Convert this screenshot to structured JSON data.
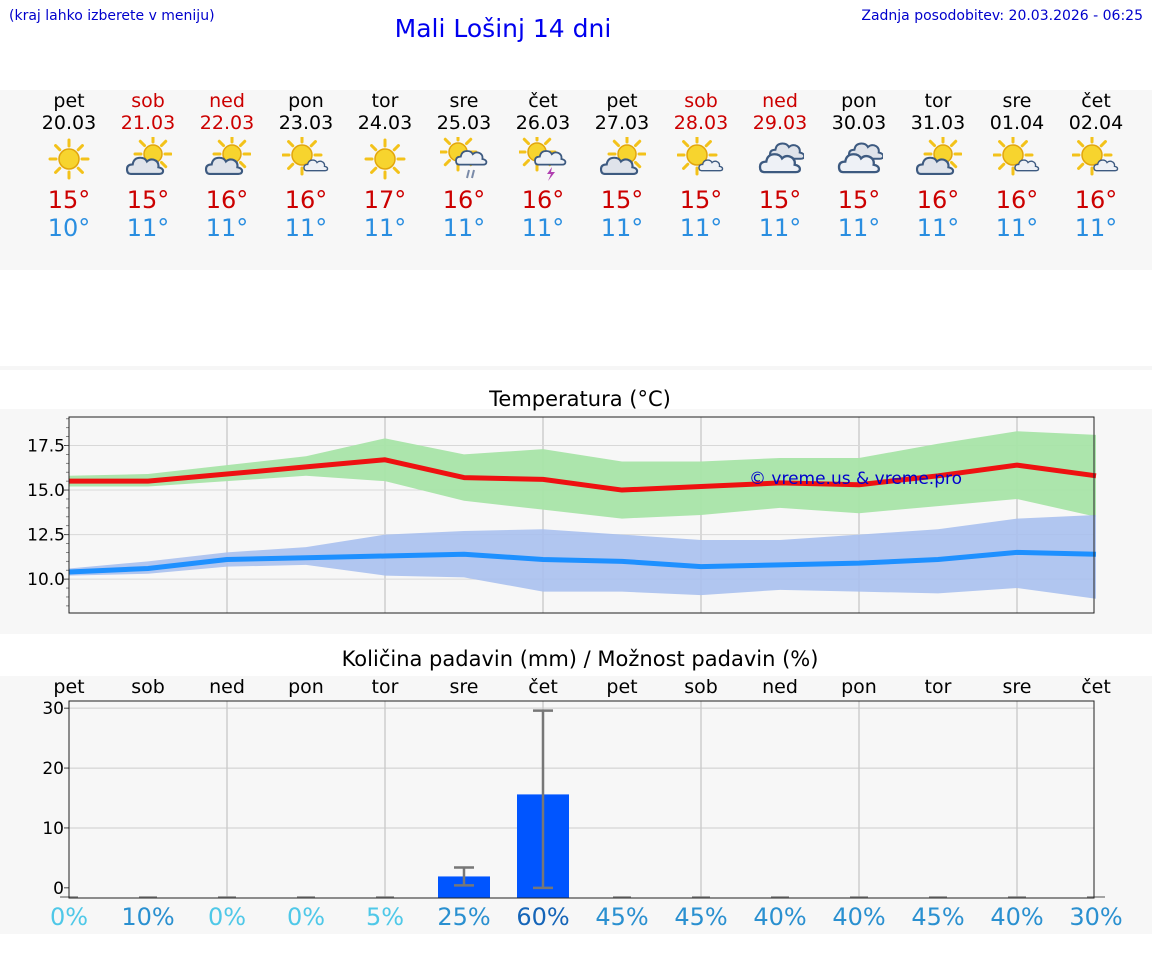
{
  "header": {
    "hint": "(kraj lahko izberete v meniju)",
    "title": "Mali Lošinj 14 dni",
    "updated": "Zadnja posodobitev: 20.03.2026 - 06:25"
  },
  "days": [
    {
      "name": "pet",
      "date": "20.03",
      "weekend": false,
      "icon": "sun-icon",
      "tmax": "15°",
      "tmin": "10°"
    },
    {
      "name": "sob",
      "date": "21.03",
      "weekend": true,
      "icon": "sun-behind-cloud-icon",
      "tmax": "15°",
      "tmin": "11°"
    },
    {
      "name": "ned",
      "date": "22.03",
      "weekend": true,
      "icon": "sun-behind-cloud-icon",
      "tmax": "16°",
      "tmin": "11°"
    },
    {
      "name": "pon",
      "date": "23.03",
      "weekend": false,
      "icon": "sun-small-cloud-icon",
      "tmax": "16°",
      "tmin": "11°"
    },
    {
      "name": "tor",
      "date": "24.03",
      "weekend": false,
      "icon": "sun-icon",
      "tmax": "17°",
      "tmin": "11°"
    },
    {
      "name": "sre",
      "date": "25.03",
      "weekend": false,
      "icon": "sun-rain-icon",
      "tmax": "16°",
      "tmin": "11°"
    },
    {
      "name": "čet",
      "date": "26.03",
      "weekend": false,
      "icon": "sun-thunder-icon",
      "tmax": "16°",
      "tmin": "11°"
    },
    {
      "name": "pet",
      "date": "27.03",
      "weekend": false,
      "icon": "sun-behind-cloud-icon",
      "tmax": "15°",
      "tmin": "11°"
    },
    {
      "name": "sob",
      "date": "28.03",
      "weekend": true,
      "icon": "sun-small-cloud-icon",
      "tmax": "15°",
      "tmin": "11°"
    },
    {
      "name": "ned",
      "date": "29.03",
      "weekend": true,
      "icon": "cloud-icon",
      "tmax": "15°",
      "tmin": "11°"
    },
    {
      "name": "pon",
      "date": "30.03",
      "weekend": false,
      "icon": "cloud-icon",
      "tmax": "15°",
      "tmin": "11°"
    },
    {
      "name": "tor",
      "date": "31.03",
      "weekend": false,
      "icon": "sun-behind-cloud-icon",
      "tmax": "16°",
      "tmin": "11°"
    },
    {
      "name": "sre",
      "date": "01.04",
      "weekend": false,
      "icon": "sun-small-cloud-icon",
      "tmax": "16°",
      "tmin": "11°"
    },
    {
      "name": "čet",
      "date": "02.04",
      "weekend": false,
      "icon": "sun-small-cloud-icon",
      "tmax": "16°",
      "tmin": "11°"
    }
  ],
  "colors": {
    "max_line": "#ee1111",
    "max_band": "#a8e4a8",
    "min_line": "#1e90ff",
    "min_band": "#a8c0ee",
    "bar": "#0055ff",
    "error": "#777777",
    "watermark": "#0000cc"
  },
  "chart_data": [
    {
      "type": "line",
      "title": "Temperatura (°C)",
      "categories": [
        "pet",
        "sob",
        "ned",
        "pon",
        "tor",
        "sre",
        "čet",
        "pet",
        "sob",
        "ned",
        "pon",
        "tor",
        "sre",
        "čet"
      ],
      "ylim": [
        8.1,
        19.1
      ],
      "yticks": [
        "10.0",
        "12.5",
        "15.0",
        "17.5"
      ],
      "watermark": "© vreme.us & vreme.pro",
      "series": [
        {
          "name": "max",
          "values": [
            15.5,
            15.5,
            15.9,
            16.3,
            16.7,
            15.7,
            15.6,
            15.0,
            15.2,
            15.4,
            15.3,
            15.8,
            16.4,
            15.8
          ],
          "band_low": [
            15.2,
            15.2,
            15.5,
            15.8,
            15.5,
            14.4,
            13.9,
            13.4,
            13.6,
            14.0,
            13.7,
            14.1,
            14.5,
            13.5
          ],
          "band_high": [
            15.8,
            15.9,
            16.4,
            16.9,
            17.9,
            17.0,
            17.3,
            16.6,
            16.6,
            16.8,
            16.8,
            17.6,
            18.3,
            18.1
          ]
        },
        {
          "name": "min",
          "values": [
            10.4,
            10.6,
            11.1,
            11.2,
            11.3,
            11.4,
            11.1,
            11.0,
            10.7,
            10.8,
            10.9,
            11.1,
            11.5,
            11.4
          ],
          "band_low": [
            10.2,
            10.3,
            10.7,
            10.8,
            10.2,
            10.1,
            9.3,
            9.3,
            9.1,
            9.4,
            9.3,
            9.2,
            9.5,
            8.9
          ],
          "band_high": [
            10.6,
            11.0,
            11.5,
            11.8,
            12.5,
            12.7,
            12.8,
            12.5,
            12.2,
            12.2,
            12.5,
            12.8,
            13.4,
            13.6
          ]
        }
      ]
    },
    {
      "type": "bar",
      "title": "Količina padavin (mm) / Možnost padavin (%)",
      "categories": [
        "pet",
        "sob",
        "ned",
        "pon",
        "tor",
        "sre",
        "čet",
        "pet",
        "sob",
        "ned",
        "pon",
        "tor",
        "sre",
        "čet"
      ],
      "ylim": [
        -1.7,
        31.2
      ],
      "yticks": [
        "0",
        "10",
        "20",
        "30"
      ],
      "values": [
        0,
        0,
        0,
        0,
        0,
        1.9,
        15.6,
        0,
        0,
        0,
        0,
        0,
        0,
        0
      ],
      "err_low": [
        0,
        0,
        0,
        0,
        0,
        0.4,
        0,
        0,
        0,
        0,
        0,
        0,
        0,
        0
      ],
      "err_high": [
        0,
        0,
        0,
        0,
        0,
        3.4,
        29.6,
        0,
        0,
        0,
        0,
        0,
        0,
        0
      ],
      "chance": [
        "0%",
        "10%",
        "0%",
        "0%",
        "5%",
        "25%",
        "60%",
        "45%",
        "45%",
        "40%",
        "40%",
        "45%",
        "40%",
        "30%"
      ],
      "chance_colors": [
        "#4fc8e8",
        "#2a90d0",
        "#4fc8e8",
        "#4fc8e8",
        "#4fc8e8",
        "#2a90d0",
        "#1565b8",
        "#2a90d0",
        "#2a90d0",
        "#2a90d0",
        "#2a90d0",
        "#2a90d0",
        "#2a90d0",
        "#2a90d0"
      ]
    }
  ]
}
